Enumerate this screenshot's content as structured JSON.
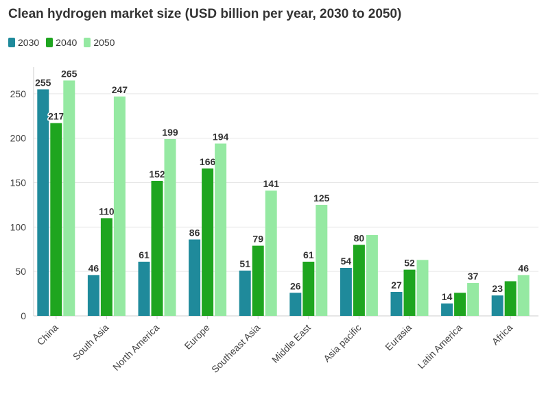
{
  "chart_data": {
    "type": "bar",
    "title": "Clean hydrogen market size (USD billion per year, 2030 to 2050)",
    "xlabel": "",
    "ylabel": "",
    "ylim": [
      0,
      280
    ],
    "yticks": [
      0,
      50,
      100,
      150,
      200,
      250
    ],
    "categories": [
      "China",
      "South Asia",
      "North America",
      "Europe",
      "Southeast Asia",
      "Middle East",
      "Asia pacific",
      "Eurasia",
      "Latin America",
      "Africa"
    ],
    "series": [
      {
        "name": "2030",
        "color": "#1f8a9b",
        "values": [
          255,
          46,
          61,
          86,
          51,
          26,
          54,
          27,
          14,
          23
        ],
        "labels": [
          "255",
          "46",
          "61",
          "86",
          "51",
          "26",
          "54",
          "27",
          "14",
          "23"
        ]
      },
      {
        "name": "2040",
        "color": "#1ea51f",
        "values": [
          217,
          110,
          152,
          166,
          79,
          61,
          80,
          52,
          26,
          39
        ],
        "labels": [
          "217",
          "110",
          "152",
          "166",
          "79",
          "61",
          "80",
          "52",
          "",
          ""
        ]
      },
      {
        "name": "2050",
        "color": "#95e9a2",
        "values": [
          265,
          247,
          199,
          194,
          141,
          125,
          91,
          63,
          37,
          46
        ],
        "labels": [
          "265",
          "247",
          "199",
          "194",
          "141",
          "125",
          "",
          "",
          "37",
          "46"
        ]
      }
    ],
    "legend": "top-left",
    "grid": true
  }
}
